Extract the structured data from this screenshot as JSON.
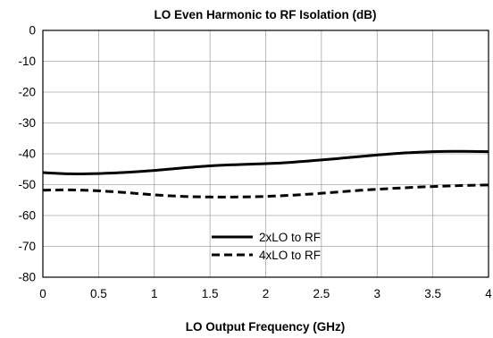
{
  "chart_data": {
    "type": "line",
    "title": "LO Even Harmonic to RF Isolation (dB)",
    "xlabel": "LO Output Frequency (GHz)",
    "ylabel": "",
    "xlim": [
      0,
      4
    ],
    "ylim": [
      -80,
      0
    ],
    "x_ticks": [
      "0",
      "0.5",
      "1",
      "1.5",
      "2",
      "2.5",
      "3",
      "3.5",
      "4"
    ],
    "y_ticks": [
      "0",
      "-10",
      "-20",
      "-30",
      "-40",
      "-50",
      "-60",
      "-70",
      "-80"
    ],
    "grid": true,
    "legend_position": "bottom-center",
    "series": [
      {
        "name": "2xLO to RF",
        "style": "solid",
        "color": "#000000",
        "x": [
          0,
          0.25,
          0.5,
          0.75,
          1,
          1.25,
          1.5,
          1.75,
          2,
          2.25,
          2.5,
          2.75,
          3,
          3.25,
          3.5,
          3.75,
          4
        ],
        "y": [
          -46.1,
          -46.5,
          -46.4,
          -46.0,
          -45.4,
          -44.6,
          -43.9,
          -43.5,
          -43.2,
          -42.7,
          -42.0,
          -41.2,
          -40.4,
          -39.7,
          -39.3,
          -39.2,
          -39.3
        ]
      },
      {
        "name": "4xLO to RF",
        "style": "dashed",
        "color": "#000000",
        "x": [
          0,
          0.25,
          0.5,
          0.75,
          1,
          1.25,
          1.5,
          1.75,
          2,
          2.25,
          2.5,
          2.75,
          3,
          3.25,
          3.5,
          3.75,
          4
        ],
        "y": [
          -51.8,
          -51.7,
          -52.0,
          -52.6,
          -53.3,
          -53.8,
          -54.0,
          -54.0,
          -53.8,
          -53.4,
          -52.8,
          -52.1,
          -51.5,
          -51.0,
          -50.6,
          -50.3,
          -50.1
        ]
      }
    ]
  }
}
